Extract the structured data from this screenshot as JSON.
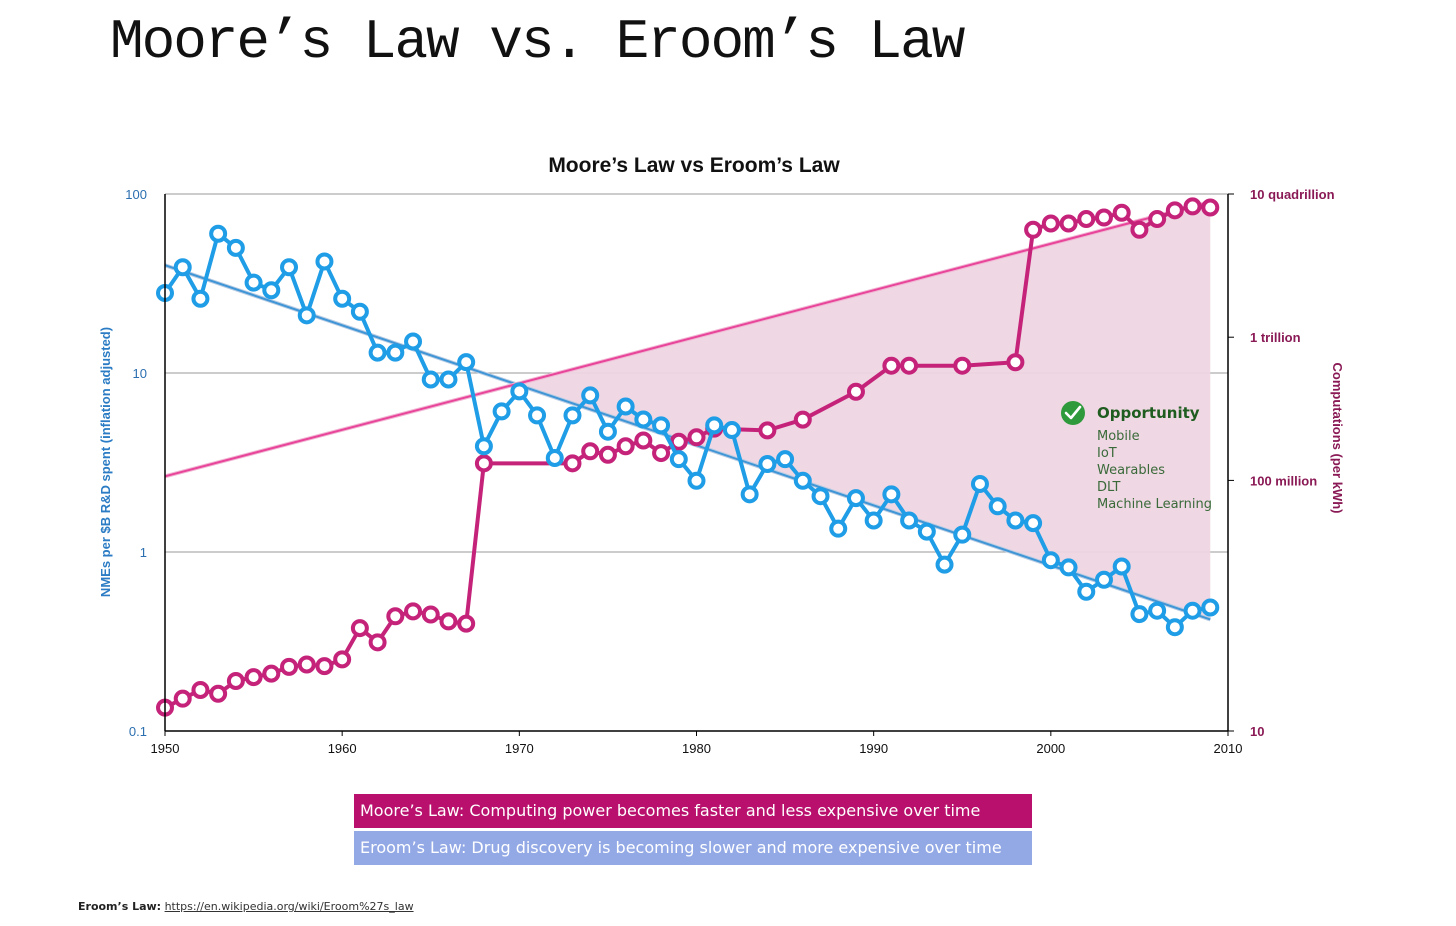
{
  "slide_title": "Moore’s Law vs. Eroom’s Law",
  "legend_boxes": {
    "moore": "Moore’s Law: Computing power becomes faster and less expensive over time",
    "eroom": "Eroom’s Law: Drug discovery is becoming slower and more expensive over time"
  },
  "footnote": {
    "label": "Eroom’s Law:",
    "link": "https://en.wikipedia.org/wiki/Eroom%27s_law"
  },
  "colors": {
    "eroom": "#1f9de6",
    "eroom_trend": "#8fb6e0",
    "moore": "#c5237a",
    "moore_trend": "#e8449a",
    "opportunity_fill": "#eed5e2",
    "opportunity_title": "#1f5c1f",
    "check": "#2e9a3c"
  },
  "chart_data": {
    "type": "line",
    "title": "Moore’s Law vs Eroom’s Law",
    "xlim": [
      1950,
      2010
    ],
    "x_ticks": [
      "1950",
      "1960",
      "1970",
      "1980",
      "1990",
      "2000",
      "2010"
    ],
    "y_left": {
      "label": "NMEs per $B R&D spent (inflation adjusted)",
      "scale": "log",
      "lim": [
        0.1,
        100
      ],
      "ticks": [
        {
          "value": 0.1,
          "label": "0.1"
        },
        {
          "value": 1,
          "label": "1"
        },
        {
          "value": 10,
          "label": "10"
        },
        {
          "value": 100,
          "label": "100"
        }
      ]
    },
    "y_right": {
      "label": "Computations (per kWh)",
      "scale": "log",
      "lim": [
        10,
        10000000000000000
      ],
      "ticks": [
        {
          "value": 10,
          "label": "10"
        },
        {
          "value": 100000000,
          "label": "100 million"
        },
        {
          "value": 1000000000000,
          "label": "1 trillion"
        },
        {
          "value": 10000000000000000,
          "label": "10 quadrillion"
        }
      ]
    },
    "grid": true,
    "eroom": {
      "x": [
        1950,
        1951,
        1952,
        1953,
        1954,
        1955,
        1956,
        1957,
        1958,
        1959,
        1960,
        1961,
        1962,
        1963,
        1964,
        1965,
        1966,
        1967,
        1968,
        1969,
        1970,
        1971,
        1972,
        1973,
        1974,
        1975,
        1976,
        1977,
        1978,
        1979,
        1980,
        1981,
        1982,
        1983,
        1984,
        1985,
        1986,
        1987,
        1988,
        1989,
        1990,
        1991,
        1992,
        1993,
        1994,
        1995,
        1996,
        1997,
        1998,
        1999,
        2000,
        2001,
        2002,
        2003,
        2004,
        2005,
        2006,
        2007,
        2008,
        2009
      ],
      "y": [
        28,
        39,
        26,
        60,
        50,
        32,
        29,
        39,
        21,
        42,
        26,
        22,
        13,
        13,
        15,
        9.2,
        9.2,
        11.5,
        3.9,
        6.1,
        7.9,
        5.8,
        3.35,
        5.8,
        7.5,
        4.7,
        6.5,
        5.5,
        5.1,
        3.3,
        2.5,
        5.1,
        4.8,
        2.1,
        3.1,
        3.3,
        2.5,
        2.05,
        1.35,
        2.0,
        1.5,
        2.1,
        1.5,
        1.3,
        0.85,
        1.25,
        2.4,
        1.8,
        1.5,
        1.45,
        0.9,
        0.82,
        0.6,
        0.7,
        0.83,
        0.45,
        0.47,
        0.38,
        0.47,
        0.49
      ]
    },
    "eroom_trend": {
      "x": [
        1950,
        2009
      ],
      "y": [
        40,
        0.42
      ]
    },
    "moore": {
      "x": [
        1950,
        1951,
        1952,
        1953,
        1954,
        1955,
        1956,
        1957,
        1958,
        1959,
        1960,
        1961,
        1962,
        1963,
        1964,
        1965,
        1966,
        1967,
        1968,
        1973,
        1974,
        1975,
        1976,
        1977,
        1978,
        1979,
        1980,
        1981,
        1984,
        1986,
        1989,
        1991,
        1992,
        1995,
        1998,
        1999,
        2000,
        2001,
        2002,
        2003,
        2004,
        2005,
        2006,
        2007,
        2008,
        2009
      ],
      "y": [
        45,
        80,
        140,
        110,
        250,
        320,
        400,
        620,
        720,
        650,
        1000,
        7500,
        3000,
        16000,
        22000,
        18000,
        11500,
        10000,
        300000000,
        300000000,
        650000000,
        520000000,
        900000000,
        1300000000,
        580000000,
        1200000000,
        1600000000,
        2800000000,
        2500000000,
        5000000000,
        30000000000,
        160000000000,
        160000000000,
        160000000000,
        200000000000,
        1000000000000000,
        1500000000000000,
        1500000000000000,
        2000000000000000,
        2200000000000000,
        3000000000000000,
        1000000000000000,
        2000000000000000,
        3500000000000000,
        4500000000000000,
        4200000000000000
      ]
    },
    "moore_trend": {
      "x": [
        1950,
        2009
      ],
      "y": [
        130000000.0,
        6000000000000000.0
      ]
    },
    "opportunity": {
      "title": "Opportunity",
      "items": [
        "Mobile",
        "IoT",
        "Wearables",
        "DLT",
        "Machine Learning"
      ]
    }
  }
}
